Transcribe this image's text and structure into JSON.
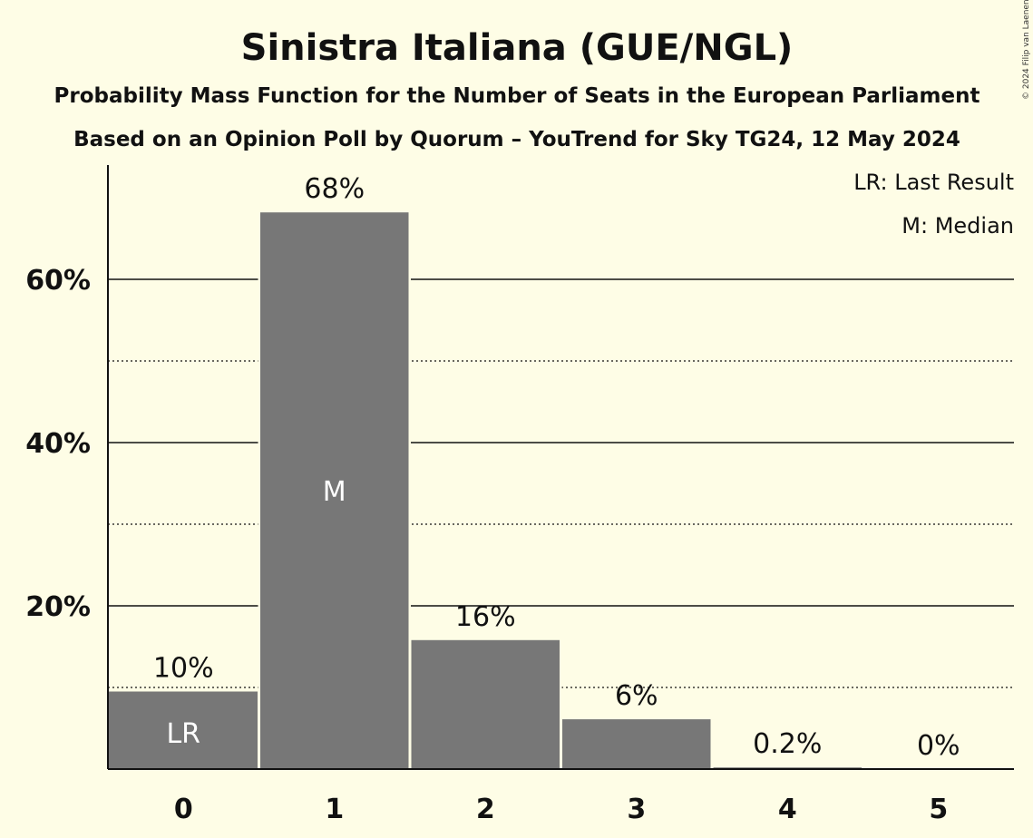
{
  "chart_data": {
    "type": "bar",
    "title": "Sinistra Italiana (GUE/NGL)",
    "subtitle": "Probability Mass Function for the Number of Seats in the European Parliament",
    "subtitle2": "Based on an Opinion Poll by Quorum – YouTrend for Sky TG24, 12 May 2024",
    "copyright": "© 2024 Filip van Laenen",
    "legend": {
      "placement": "top-right",
      "entries": [
        "LR: Last Result",
        "M: Median"
      ]
    },
    "categories": [
      "0",
      "1",
      "2",
      "3",
      "4",
      "5"
    ],
    "values": [
      9.5,
      68.2,
      15.8,
      6.1,
      0.2,
      0.0
    ],
    "value_labels": [
      "10%",
      "68%",
      "16%",
      "6%",
      "0.2%",
      "0%"
    ],
    "in_bar_labels": [
      "LR",
      "M",
      "",
      "",
      "",
      ""
    ],
    "ylim": [
      0,
      74
    ],
    "y_major_ticks": [
      20,
      40,
      60
    ],
    "y_tick_labels": [
      "20%",
      "40%",
      "60%"
    ],
    "y_minor_ticks": [
      10,
      30,
      50
    ],
    "grid": true,
    "xlabel": "",
    "ylabel": "",
    "colors": {
      "bar": "#777777",
      "background": "#fefde6",
      "axis": "#111111"
    }
  }
}
